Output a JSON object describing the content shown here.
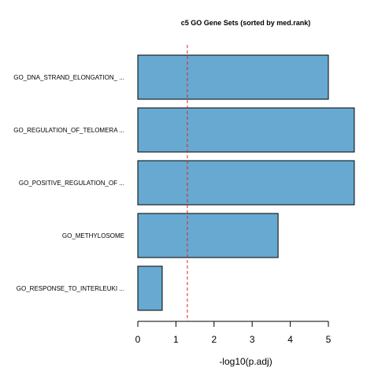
{
  "chart_data": {
    "type": "bar",
    "orientation": "horizontal",
    "title": "c5 GO Gene Sets (sorted by med.rank)",
    "xlabel": "-log10(p.adj)",
    "ylabel": "",
    "categories": [
      "GO_DNA_STRAND_ELONGATION_ ...",
      "GO_REGULATION_OF_TELOMERA ...",
      "GO_POSITIVE_REGULATION_OF ...",
      "GO_METHYLOSOME",
      "GO_RESPONSE_TO_INTERLEUKI ..."
    ],
    "values": [
      5.0,
      5.68,
      5.68,
      3.68,
      0.64
    ],
    "xlim": [
      0,
      5.7
    ],
    "xticks": [
      "0",
      "1",
      "2",
      "3",
      "4",
      "5"
    ],
    "threshold_line": {
      "value": 1.3,
      "style": "dashed",
      "color": "#d62728"
    },
    "bar_color": "#67a9d0",
    "bar_edge_color": "#000000",
    "grid": false,
    "legend": "none"
  }
}
